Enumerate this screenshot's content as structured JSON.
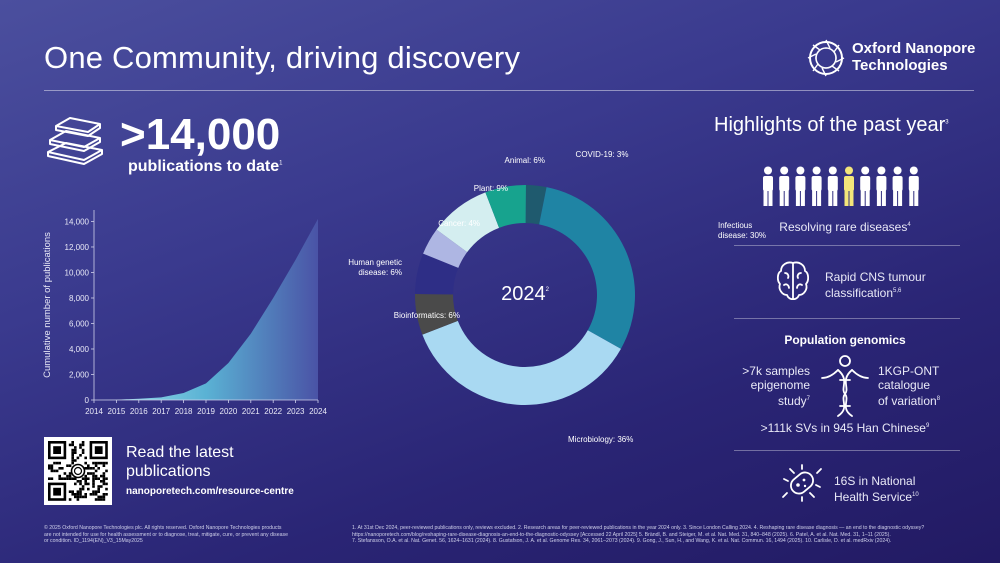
{
  "header": {
    "title": "One Community, driving discovery",
    "brand_line1": "Oxford Nanopore",
    "brand_line2": "Technologies"
  },
  "publications": {
    "count": ">14,000",
    "label": "publications to date",
    "label_ref": "1"
  },
  "chart_data": [
    {
      "type": "area",
      "x": [
        "2014",
        "2015",
        "2016",
        "2017",
        "2018",
        "2019",
        "2020",
        "2021",
        "2022",
        "2023",
        "2024"
      ],
      "values": [
        0,
        20,
        100,
        200,
        550,
        1300,
        2900,
        5200,
        8000,
        11000,
        14200
      ],
      "ylabel": "Cumulative number of publications",
      "ylim": [
        0,
        14000
      ],
      "yticks": [
        "0",
        "2,000",
        "4,000",
        "6,000",
        "8,000",
        "10,000",
        "12,000",
        "14,000"
      ]
    },
    {
      "type": "pie",
      "center_label": "2024",
      "center_ref": "2",
      "slices": [
        {
          "label": "COVID-19: 3%",
          "value": 3,
          "color": "#1f5a6e"
        },
        {
          "label": "Infectious disease: 30%",
          "value": 30,
          "color": "#1f84a4"
        },
        {
          "label": "Microbiology: 36%",
          "value": 36,
          "color": "#a9d9f2"
        },
        {
          "label": "Bioinformatics: 6%",
          "value": 6,
          "color": "#4a4a4a"
        },
        {
          "label": "Human genetic disease: 6%",
          "value": 6,
          "color": "#2e2e86"
        },
        {
          "label": "Cancer: 4%",
          "value": 4,
          "color": "#aeb6e3"
        },
        {
          "label": "Plant: 9%",
          "value": 9,
          "color": "#d4eef0"
        },
        {
          "label": "Animal: 6%",
          "value": 6,
          "color": "#17a38e"
        }
      ]
    }
  ],
  "highlights": {
    "title": "Highlights of the past year",
    "title_ref": "3",
    "rare_label": "Resolving rare diseases",
    "rare_ref": "4",
    "cns_line1": "Rapid CNS tumour",
    "cns_line2": "classification",
    "cns_ref": "5,6",
    "pop_title": "Population genomics",
    "samples_line1": ">7k samples",
    "samples_line2": "epigenome",
    "samples_line3": "study",
    "samples_ref": "7",
    "kgp_line1": "1KGP-ONT",
    "kgp_line2": "catalogue",
    "kgp_line3": "of variation",
    "kgp_ref": "8",
    "svs_label": ">111k SVs in 945 Han Chinese",
    "svs_ref": "9",
    "nhs_line1": "16S in National",
    "nhs_line2": "Health Service",
    "nhs_ref": "10",
    "person_color": "#ffffff",
    "highlight_color": "#f3e57a"
  },
  "footer": {
    "read_latest": "Read the latest publications",
    "url": "nanoporetech.com/resource-centre",
    "legal_1": "© 2025 Oxford Nanopore Technologies plc. All rights reserved. Oxford Nanopore Technologies products",
    "legal_2": "are not intended for use for health assessment or to diagnose, treat, mitigate, cure, or prevent any disease",
    "legal_3": "or condition. ID_1194(EN)_V3_15May2025",
    "refs_1": "1. At 31st Dec 2024, peer-reviewed publications only, reviews excluded. 2. Research areas for peer-reviewed publications in the year 2024 only. 3. Since London Calling 2024. 4. Reshaping rare disease diagnosis — an end to the diagnostic odyssey?",
    "refs_2": "https://nanoporetech.com/blog/reshaping-rare-disease-diagnosis-an-end-to-the-diagnostic-odyssey [Accessed 22 April 2025] 5. Brändl, B. and Steiger, M. et al. Nat. Med. 31, 840–848 (2025). 6. Patel, A. et al. Nat. Med. 31, 1–11 (2025).",
    "refs_3": "7. Stefansson, O.A. et al. Nat. Genet. 56, 1624–1631 (2024). 8. Gustafson, J. A. et al. Genome Res. 34, 2061–2073 (2024). 9. Gong, J., Sun, H., and Wang, K. et al. Nat. Commun. 16, 1494 (2025). 10. Carlisle, D. et al. medRxiv (2024)."
  }
}
